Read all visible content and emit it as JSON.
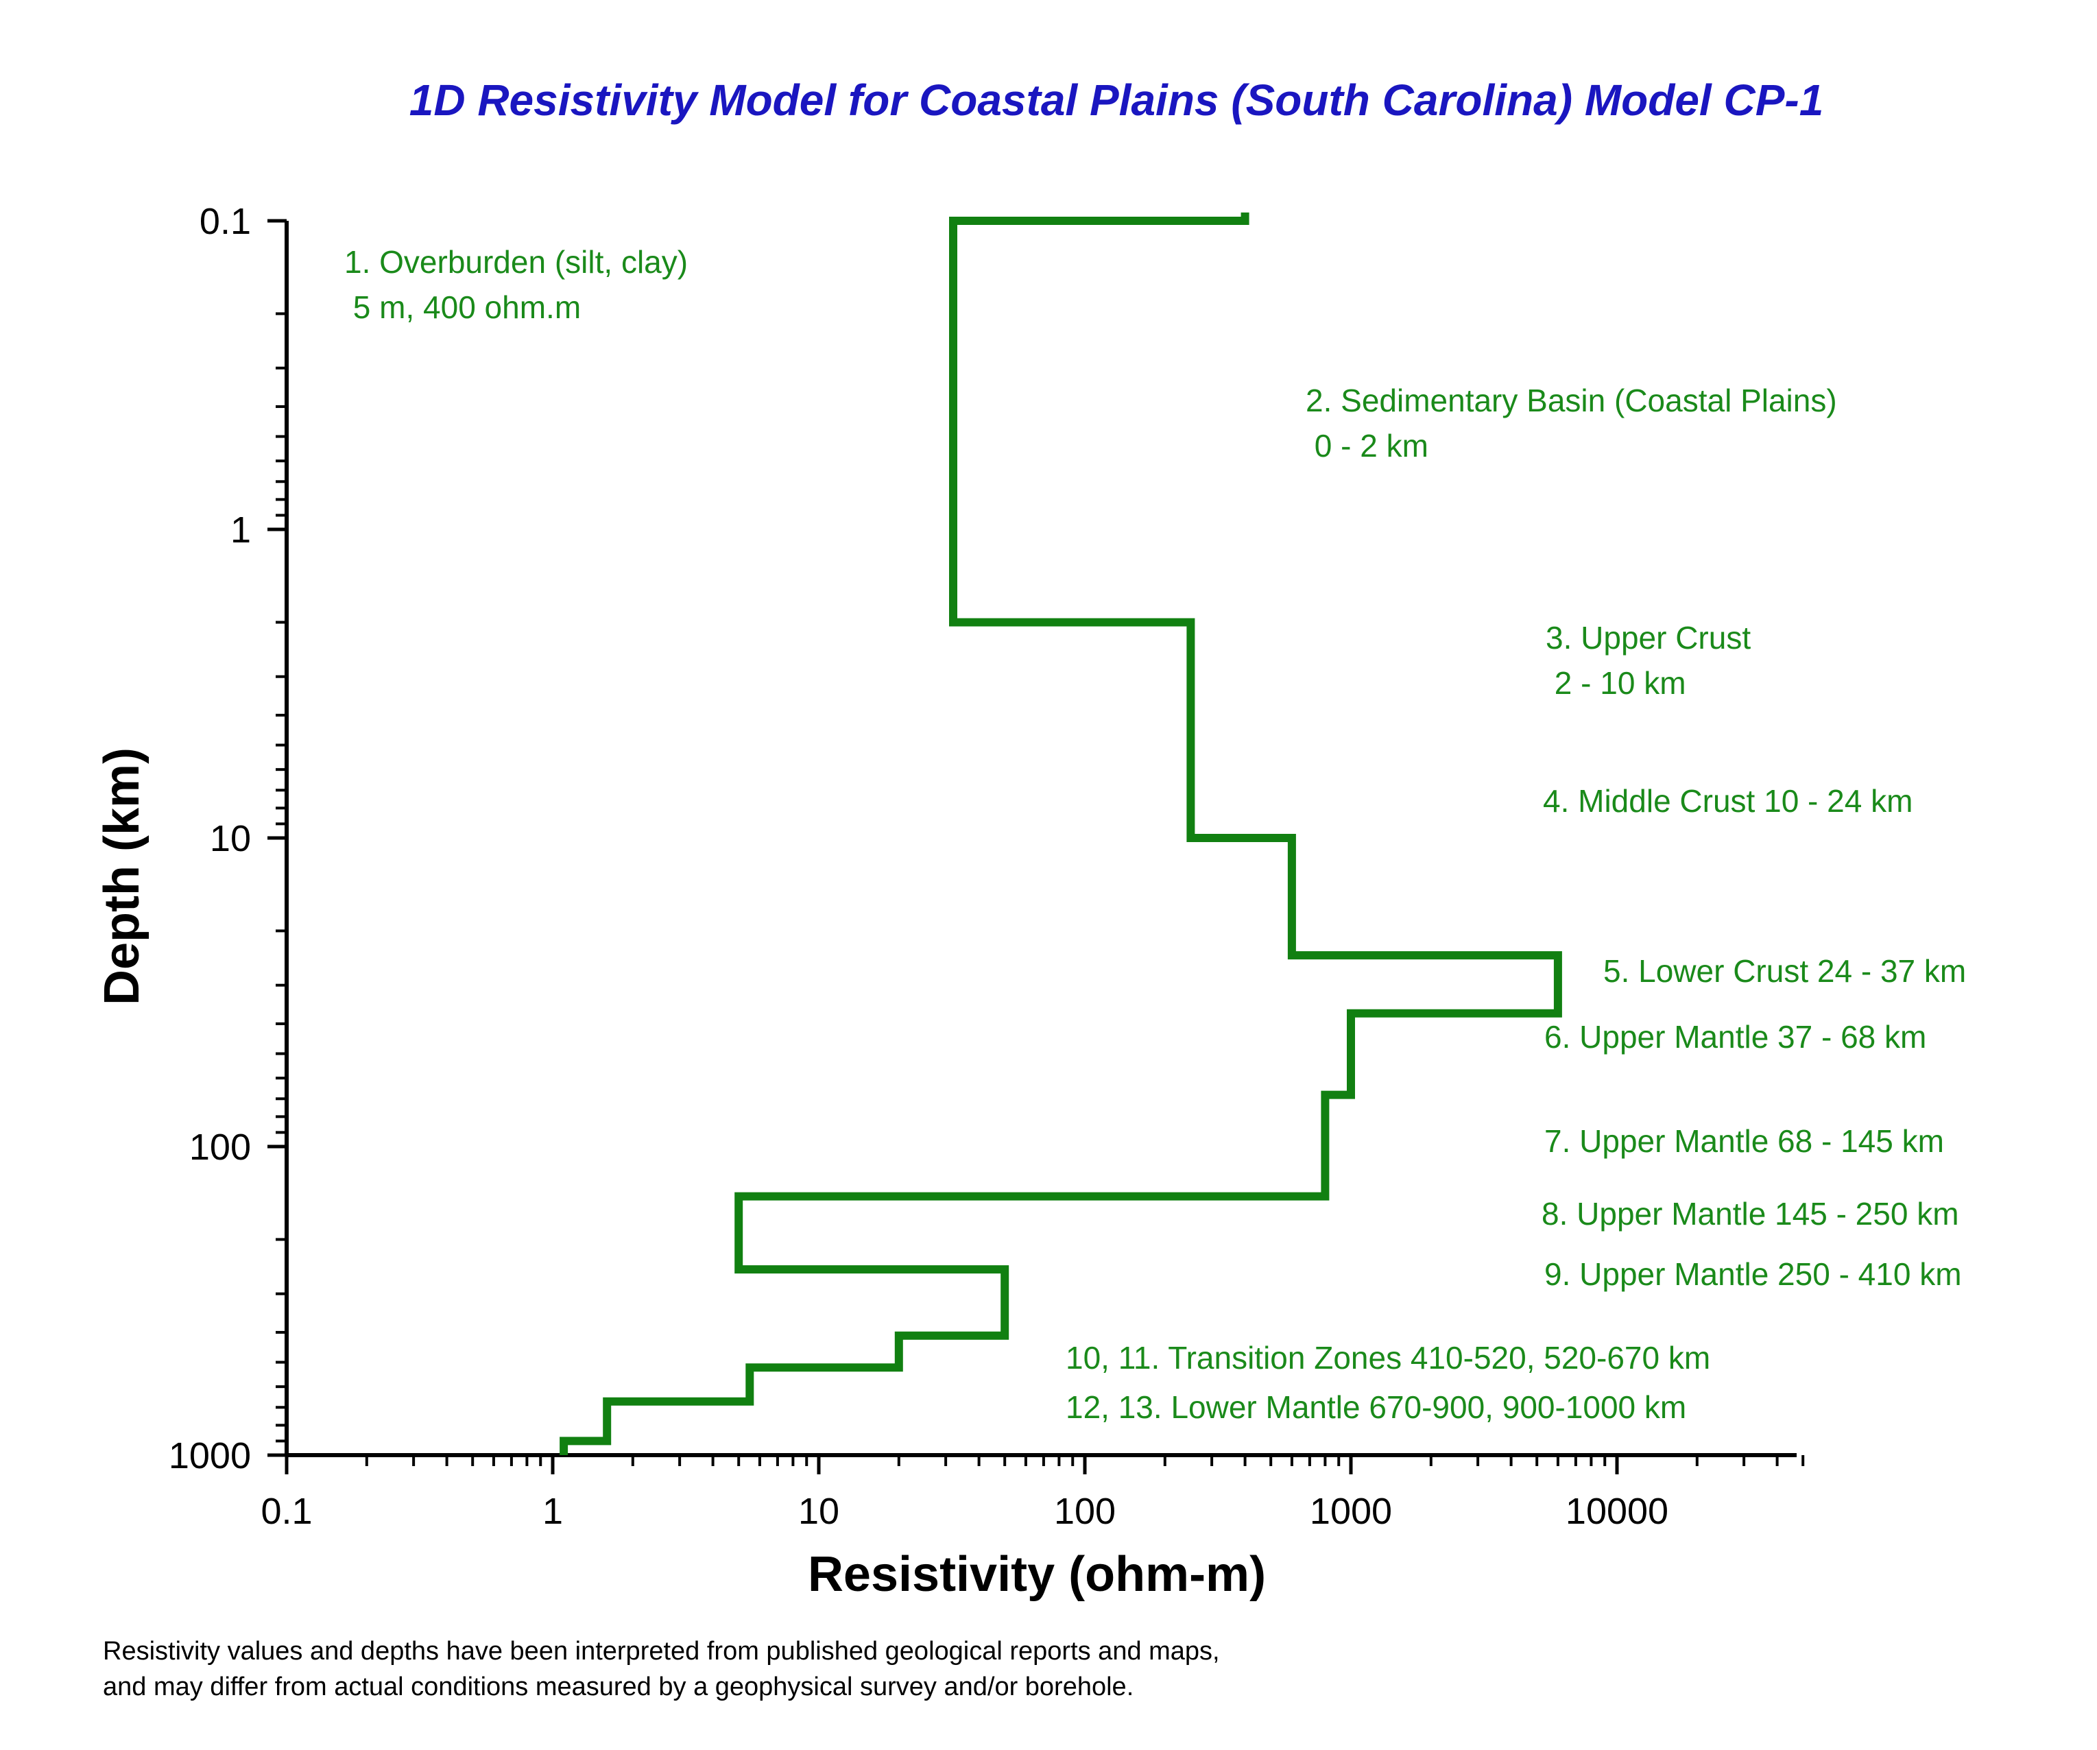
{
  "chart_data": {
    "type": "line",
    "title": "1D Resistivity Model for Coastal Plains (South Carolina)  Model CP-1",
    "xlabel": "Resistivity (ohm-m)",
    "ylabel": "Depth (km)",
    "x_scale": "log",
    "y_scale": "log",
    "y_inverted": true,
    "xlim": [
      0.1,
      50000
    ],
    "ylim": [
      0.1,
      1000
    ],
    "x_ticks": [
      "0.1",
      "1",
      "10",
      "100",
      "1000",
      "10000"
    ],
    "y_ticks": [
      "0.1",
      "1",
      "10",
      "100",
      "1000"
    ],
    "grid": false,
    "line_color": "#118011",
    "series": [
      {
        "x": [
          400,
          400,
          32,
          32,
          250,
          250,
          600,
          600,
          6000,
          6000,
          1000,
          1000,
          800,
          800,
          5,
          5,
          50,
          50,
          20,
          20,
          5.5,
          5.5,
          1.6,
          1.6,
          1.1,
          1.1
        ],
        "y": [
          0.094,
          0.1,
          0.1,
          2,
          2,
          10,
          10,
          24,
          24,
          37,
          37,
          68,
          68,
          145,
          145,
          250,
          250,
          410,
          410,
          520,
          520,
          670,
          670,
          900,
          900,
          1000
        ]
      }
    ],
    "annotations": [
      {
        "lines": [
          "1. Overburden (silt, clay)",
          "    5 m, 400 ohm.m"
        ]
      },
      {
        "lines": [
          "2. Sedimentary Basin (Coastal Plains)",
          "    0 - 2 km"
        ]
      },
      {
        "lines": [
          "3. Upper Crust",
          "    2 - 10 km"
        ]
      },
      {
        "lines": [
          "4. Middle Crust 10 - 24 km"
        ]
      },
      {
        "lines": [
          "5. Lower Crust 24 - 37 km"
        ]
      },
      {
        "lines": [
          "6. Upper Mantle 37 - 68 km"
        ]
      },
      {
        "lines": [
          "7. Upper Mantle 68 - 145 km"
        ]
      },
      {
        "lines": [
          "8. Upper Mantle 145 - 250 km"
        ]
      },
      {
        "lines": [
          "9. Upper Mantle  250 - 410 km"
        ]
      },
      {
        "lines": [
          "10, 11. Transition Zones 410-520, 520-670 km"
        ]
      },
      {
        "lines": [
          "12, 13. Lower Mantle 670-900, 900-1000 km"
        ]
      }
    ],
    "footnote": [
      "Resistivity values and depths have been interpreted from published geological reports and maps,",
      " and may differ from actual conditions measured by a geophysical survey and/or borehole."
    ]
  }
}
